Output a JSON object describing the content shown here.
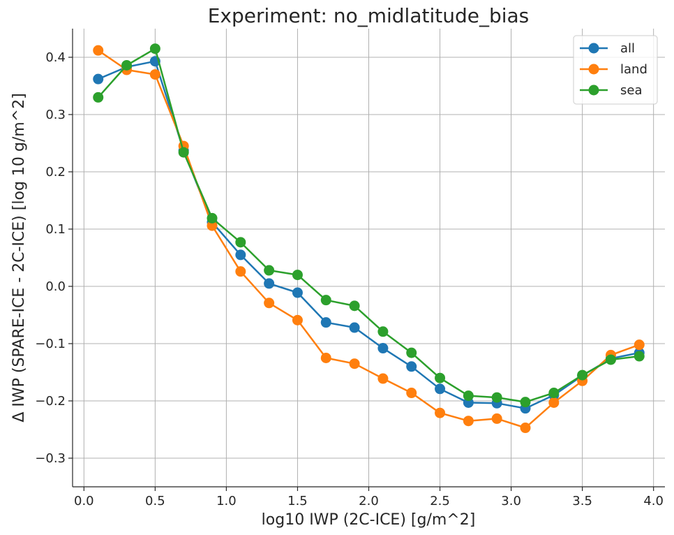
{
  "chart_data": {
    "type": "line",
    "title": "Experiment: no_midlatitude_bias",
    "xlabel": "log10 IWP (2C-ICE) [g/m^2]",
    "ylabel": "Δ IWP (SPARE-ICE - 2C-ICE) [log 10 g/m^2]",
    "xlim": [
      -0.08,
      4.08
    ],
    "ylim": [
      -0.35,
      0.45
    ],
    "xticks": [
      0.0,
      0.5,
      1.0,
      1.5,
      2.0,
      2.5,
      3.0,
      3.5,
      4.0
    ],
    "xtick_labels": [
      "0.0",
      "0.5",
      "1.0",
      "1.5",
      "2.0",
      "2.5",
      "3.0",
      "3.5",
      "4.0"
    ],
    "yticks": [
      -0.3,
      -0.2,
      -0.1,
      0.0,
      0.1,
      0.2,
      0.3,
      0.4
    ],
    "ytick_labels": [
      "−0.3",
      "−0.2",
      "−0.1",
      "0.0",
      "0.1",
      "0.2",
      "0.3",
      "0.4"
    ],
    "grid": true,
    "legend_position": "top-right",
    "x": [
      0.1,
      0.3,
      0.5,
      0.7,
      0.9,
      1.1,
      1.3,
      1.5,
      1.7,
      1.9,
      2.1,
      2.3,
      2.5,
      2.7,
      2.9,
      3.1,
      3.3,
      3.5,
      3.7,
      3.9
    ],
    "series": [
      {
        "name": "all",
        "color": "#1f77b4",
        "values": [
          0.362,
          0.383,
          0.393,
          0.237,
          0.112,
          0.055,
          0.005,
          -0.011,
          -0.063,
          -0.072,
          -0.108,
          -0.14,
          -0.179,
          -0.203,
          -0.204,
          -0.213,
          -0.19,
          -0.156,
          -0.126,
          -0.116
        ]
      },
      {
        "name": "land",
        "color": "#ff7f0e",
        "values": [
          0.412,
          0.378,
          0.37,
          0.245,
          0.106,
          0.026,
          -0.029,
          -0.059,
          -0.125,
          -0.135,
          -0.161,
          -0.186,
          -0.221,
          -0.235,
          -0.231,
          -0.247,
          -0.203,
          -0.165,
          -0.12,
          -0.102
        ]
      },
      {
        "name": "sea",
        "color": "#2ca02c",
        "values": [
          0.33,
          0.386,
          0.415,
          0.234,
          0.119,
          0.077,
          0.028,
          0.02,
          -0.024,
          -0.034,
          -0.079,
          -0.116,
          -0.16,
          -0.191,
          -0.194,
          -0.202,
          -0.186,
          -0.155,
          -0.128,
          -0.122
        ]
      }
    ]
  }
}
